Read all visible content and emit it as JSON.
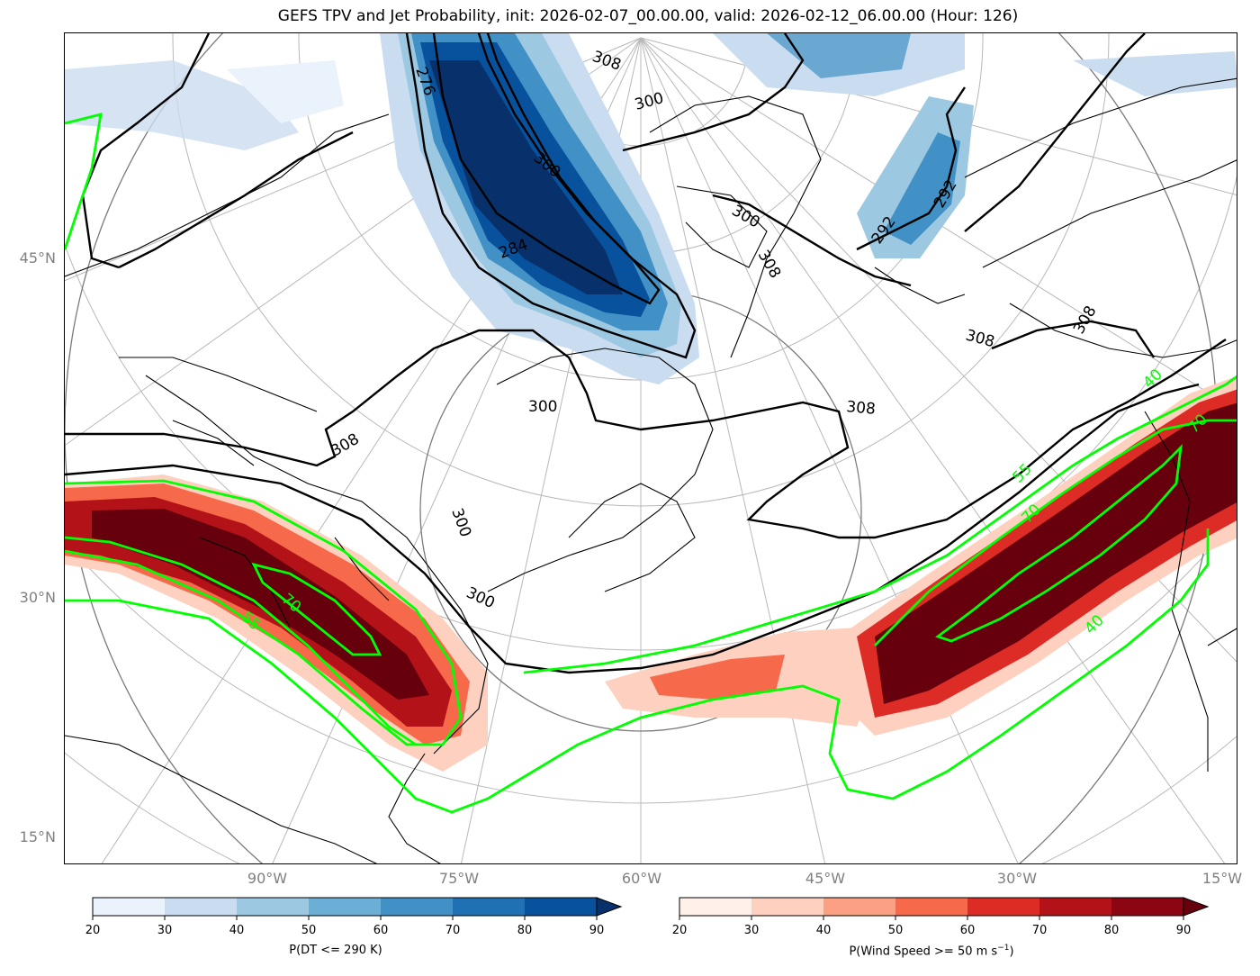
{
  "title": "GEFS TPV and Jet Probability, init: 2026-02-07_00.00.00, valid: 2026-02-12_06.00.00 (Hour: 126)",
  "lat_labels": [
    "45°N",
    "30°N",
    "15°N"
  ],
  "lon_labels": [
    "90°W",
    "75°W",
    "60°W",
    "45°W",
    "30°W",
    "15°W"
  ],
  "contour_labels_theta": [
    "276",
    "300",
    "308",
    "300",
    "308",
    "300",
    "308",
    "300",
    "300",
    "308",
    "292",
    "292",
    "308",
    "308",
    "300",
    "284"
  ],
  "contour_labels_jet": [
    "55",
    "70",
    "55",
    "70",
    "40",
    "40",
    "70"
  ],
  "colorbar_left": {
    "label": "P(DT <= 290 K)",
    "ticks": [
      "20",
      "30",
      "40",
      "50",
      "60",
      "70",
      "80",
      "90"
    ],
    "colors": [
      "#eaf2fb",
      "#cadcef",
      "#9dc8e1",
      "#6baed6",
      "#4191c6",
      "#2070b4",
      "#08519c",
      "#08306b"
    ]
  },
  "colorbar_right": {
    "label": "P(Wind Speed >= 50 m s",
    "label_sup": "−1",
    "label_tail": ")",
    "ticks": [
      "20",
      "30",
      "40",
      "50",
      "60",
      "70",
      "80",
      "90"
    ],
    "colors": [
      "#fff0ea",
      "#fdd0bf",
      "#fca083",
      "#f66a4b",
      "#dd2c26",
      "#b31218",
      "#8b0612",
      "#67000d"
    ]
  },
  "colors": {
    "jet_contour": "#00ff00",
    "theta_contour": "#000000",
    "graticule": "#b0b0b0"
  }
}
